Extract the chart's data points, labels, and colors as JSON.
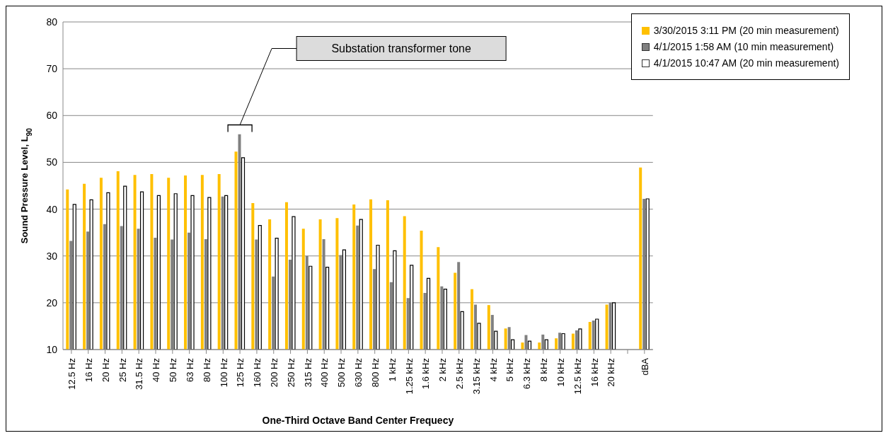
{
  "chart_data": {
    "type": "bar",
    "ylabel": "Sound Pressure Level, L$_{90}$",
    "xlabel": "One-Third Octave Band Center Frequecy",
    "categories": [
      "12.5 Hz",
      "16 Hz",
      "20 Hz",
      "25 Hz",
      "31.5 Hz",
      "40 Hz",
      "50 Hz",
      "63 Hz",
      "80 Hz",
      "100 Hz",
      "125 Hz",
      "160 Hz",
      "200 Hz",
      "250 Hz",
      "315 Hz",
      "400 Hz",
      "500 Hz",
      "630 Hz",
      "800 Hz",
      "1 kHz",
      "1.25 kHz",
      "1.6 kHz",
      "2 kHz",
      "2.5 kHz",
      "3.15 kHz",
      "4 kHz",
      "5 kHz",
      "6.3 kHz",
      "8 kHz",
      "10 kHz",
      "12.5 kHz",
      "16 kHz",
      "20 kHz",
      null,
      "dBA"
    ],
    "series": [
      {
        "name": "3/30/2015  3:11 PM (20 min measurement)",
        "color": "#ffc000",
        "values": [
          44.2,
          45.4,
          46.7,
          48.1,
          47.3,
          47.5,
          46.7,
          47.2,
          47.3,
          47.5,
          52.3,
          41.3,
          37.8,
          41.5,
          35.8,
          37.8,
          38.1,
          41.0,
          42.1,
          41.9,
          38.5,
          35.4,
          31.9,
          26.4,
          22.9,
          19.5,
          14.5,
          11.5,
          11.5,
          12.4,
          13.4,
          15.9,
          19.6,
          null,
          48.9
        ]
      },
      {
        "name": "4/1/2015  1:58 AM (10 min measurement)",
        "color": "#808080",
        "values": [
          33.2,
          35.2,
          36.8,
          36.4,
          35.8,
          33.9,
          33.5,
          35.0,
          33.6,
          42.7,
          56.0,
          33.5,
          25.6,
          29.2,
          30.0,
          33.6,
          30.2,
          36.5,
          27.2,
          24.4,
          21.0,
          22.1,
          23.5,
          28.7,
          19.6,
          17.4,
          14.8,
          13.1,
          13.2,
          13.6,
          14.1,
          16.2,
          20.0,
          null,
          42.2
        ]
      },
      {
        "name": "4/1/2015  10:47 AM (20 min measurement)",
        "color": "#ffffff",
        "values": [
          41.0,
          42.0,
          43.5,
          44.9,
          43.7,
          42.9,
          43.3,
          42.9,
          42.5,
          42.9,
          51.0,
          36.5,
          33.8,
          38.4,
          27.8,
          27.6,
          31.3,
          37.8,
          32.3,
          31.1,
          28.0,
          25.2,
          22.9,
          18.1,
          15.6,
          13.9,
          12.1,
          11.8,
          12.1,
          13.4,
          14.4,
          16.5,
          20.0,
          null,
          42.2
        ]
      }
    ],
    "ylim": [
      10,
      80
    ],
    "yticks": [
      10,
      20,
      30,
      40,
      50,
      60,
      70,
      80
    ],
    "grid": "y",
    "legend": "top right",
    "annotations": [
      "Substation transformer tone"
    ]
  }
}
